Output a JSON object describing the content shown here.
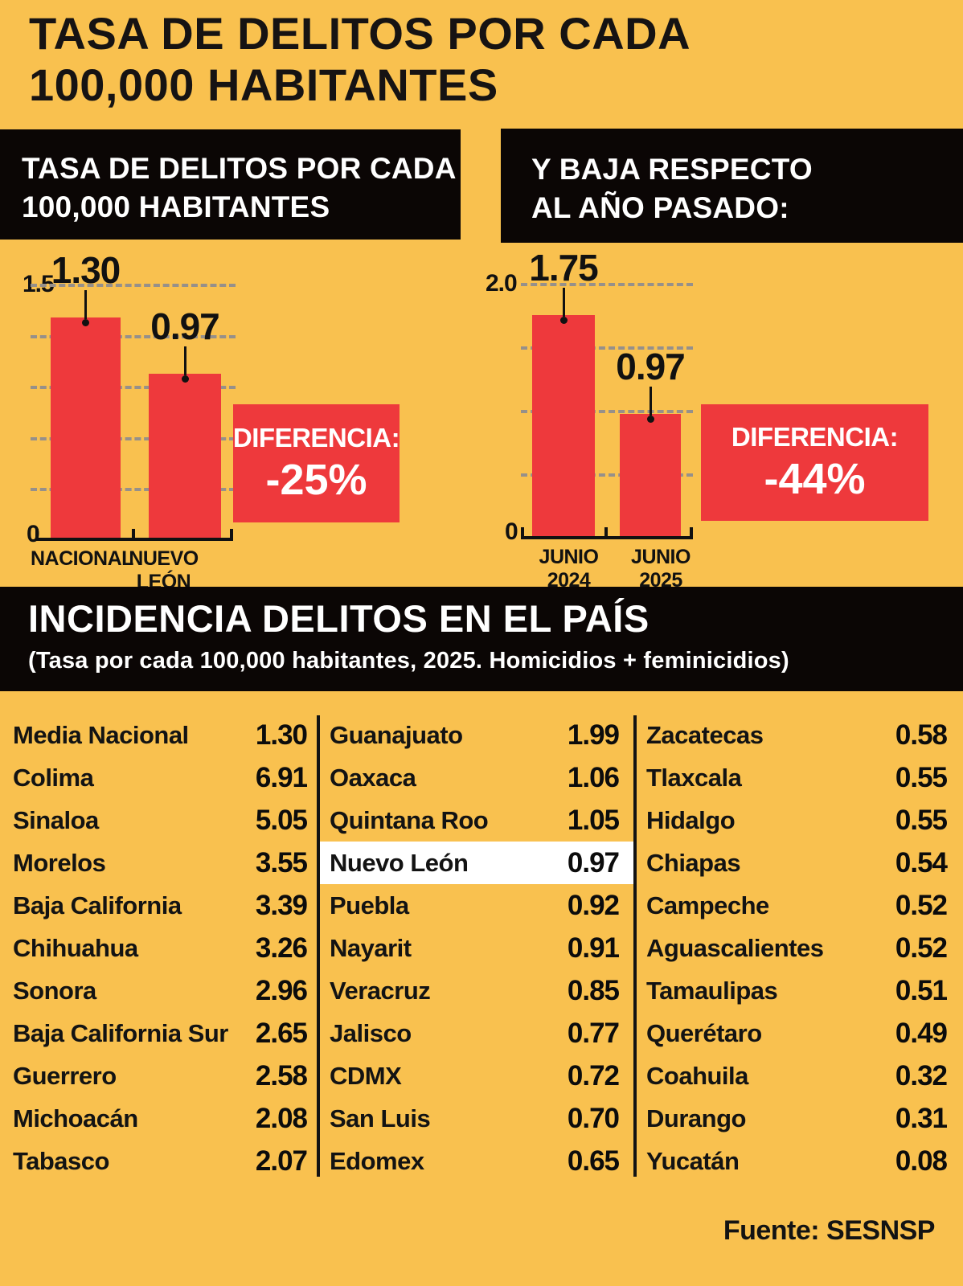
{
  "page": {
    "title_line1": "TASA DE DELITOS POR CADA",
    "title_line2": "100,000 HABITANTES",
    "source": "Fuente: SESNSP",
    "background_color": "#F9C14F",
    "accent_red": "#EE393C"
  },
  "panels": {
    "left_header_line1": "TASA DE DELITOS POR CADA",
    "left_header_line2": "100,000 HABITANTES",
    "right_header_line1": "Y BAJA RESPECTO",
    "right_header_line2": "AL AÑO PASADO:"
  },
  "chart_data": [
    {
      "type": "bar",
      "title": "TASA DE DELITOS POR CADA 100,000 HABITANTES",
      "categories": [
        "NACIONAL",
        "NUEVO LEÓN"
      ],
      "values": [
        1.3,
        0.97
      ],
      "value_labels": [
        "1.30",
        "0.97"
      ],
      "ylim": [
        0,
        1.5
      ],
      "ymax_label": "1.5",
      "ymin_label": "0",
      "grid_step": 0.3,
      "grid": "dashed",
      "legend_position": "none",
      "bar_color": "#EE393C",
      "diff_label": "DIFERENCIA:",
      "diff_value": "-25%"
    },
    {
      "type": "bar",
      "title": "Y BAJA RESPECTO AL AÑO PASADO:",
      "categories": [
        "JUNIO 2024",
        "JUNIO 2025"
      ],
      "values": [
        1.75,
        0.97
      ],
      "value_labels": [
        "1.75",
        "0.97"
      ],
      "ylim": [
        0,
        2.0
      ],
      "ymax_label": "2.0",
      "ymin_label": "0",
      "grid_step": 0.5,
      "grid": "dashed",
      "legend_position": "none",
      "bar_color": "#EE393C",
      "diff_label": "DIFERENCIA:",
      "diff_value": "-44%"
    },
    {
      "type": "table",
      "title": "INCIDENCIA DELITOS EN EL PAÍS",
      "subtitle": "(Tasa por cada 100,000 habitantes, 2025. Homicidios + feminicidios)",
      "columns": [
        {
          "rows": [
            {
              "name": "Media Nacional",
              "value": "1.30"
            },
            {
              "name": "Colima",
              "value": "6.91"
            },
            {
              "name": "Sinaloa",
              "value": "5.05"
            },
            {
              "name": "Morelos",
              "value": "3.55"
            },
            {
              "name": "Baja California",
              "value": "3.39"
            },
            {
              "name": "Chihuahua",
              "value": "3.26"
            },
            {
              "name": "Sonora",
              "value": "2.96"
            },
            {
              "name": "Baja California Sur",
              "value": "2.65"
            },
            {
              "name": "Guerrero",
              "value": "2.58"
            },
            {
              "name": "Michoacán",
              "value": "2.08"
            },
            {
              "name": "Tabasco",
              "value": "2.07"
            }
          ]
        },
        {
          "rows": [
            {
              "name": "Guanajuato",
              "value": "1.99"
            },
            {
              "name": "Oaxaca",
              "value": "1.06"
            },
            {
              "name": "Quintana Roo",
              "value": "1.05"
            },
            {
              "name": "Nuevo León",
              "value": "0.97",
              "highlight": true
            },
            {
              "name": "Puebla",
              "value": "0.92"
            },
            {
              "name": "Nayarit",
              "value": "0.91"
            },
            {
              "name": "Veracruz",
              "value": "0.85"
            },
            {
              "name": "Jalisco",
              "value": "0.77"
            },
            {
              "name": "CDMX",
              "value": "0.72"
            },
            {
              "name": "San Luis",
              "value": "0.70"
            },
            {
              "name": "Edomex",
              "value": "0.65"
            }
          ]
        },
        {
          "rows": [
            {
              "name": "Zacatecas",
              "value": "0.58"
            },
            {
              "name": "Tlaxcala",
              "value": "0.55"
            },
            {
              "name": "Hidalgo",
              "value": "0.55"
            },
            {
              "name": "Chiapas",
              "value": "0.54"
            },
            {
              "name": "Campeche",
              "value": "0.52"
            },
            {
              "name": "Aguascalientes",
              "value": "0.52"
            },
            {
              "name": "Tamaulipas",
              "value": "0.51"
            },
            {
              "name": "Querétaro",
              "value": "0.49"
            },
            {
              "name": "Coahuila",
              "value": "0.32"
            },
            {
              "name": "Durango",
              "value": "0.31"
            },
            {
              "name": "Yucatán",
              "value": "0.08"
            }
          ]
        }
      ]
    }
  ]
}
